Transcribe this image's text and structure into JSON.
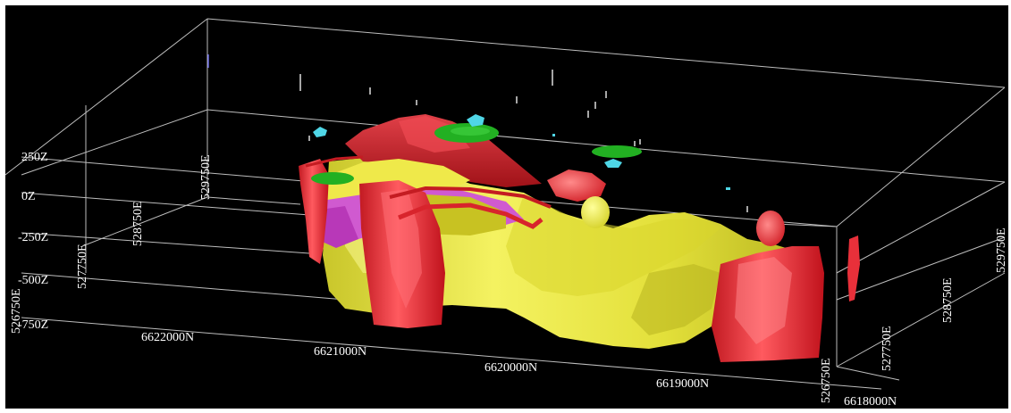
{
  "viewer": {
    "background": "#000000",
    "grid_color": "#bdbdbd",
    "label_color": "#ffffff"
  },
  "axes": {
    "z_labels": [
      "250Z",
      "0Z",
      "-250Z",
      "-500Z",
      "-750Z"
    ],
    "northing_labels": [
      "6622000N",
      "6621000N",
      "6620000N",
      "6619000N",
      "6618000N"
    ],
    "easting_left_labels": [
      "526750E",
      "527750E",
      "528750E",
      "529750E"
    ],
    "easting_right_labels": [
      "526750E",
      "527750E",
      "528750E",
      "529750E"
    ]
  },
  "bodies": {
    "yellow_body_color": "#e8e63c",
    "red_body_color": "#e8303a",
    "magenta_body_color": "#d05ad0",
    "green_disc_color": "#22b022",
    "cyan_marker_color": "#4fd6e6"
  }
}
